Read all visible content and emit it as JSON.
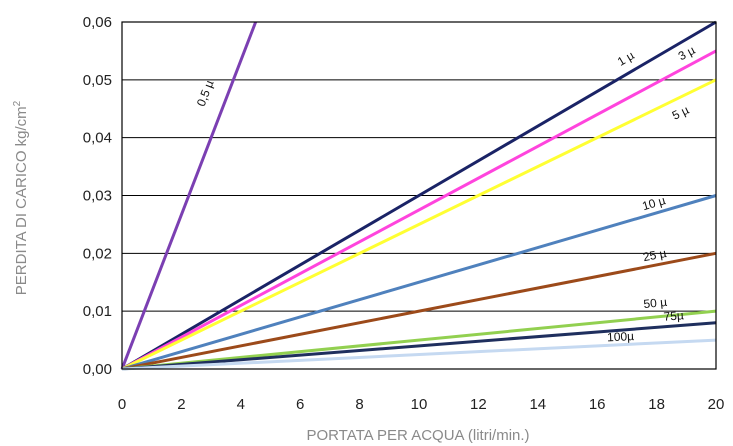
{
  "chart_data": {
    "type": "line",
    "xlabel": "PORTATA PER ACQUA (litri/min.)",
    "ylabel": "PERDITA DI CARICO kg/cm",
    "ylabel_superscript": "2",
    "xlim": [
      0,
      20
    ],
    "ylim": [
      0,
      0.06
    ],
    "x_ticks": [
      "0",
      "2",
      "4",
      "6",
      "8",
      "10",
      "12",
      "14",
      "16",
      "18",
      "20"
    ],
    "y_ticks": [
      "0,00",
      "0,01",
      "0,02",
      "0,03",
      "0,04",
      "0,05",
      "0,06"
    ],
    "grid": "horizontal",
    "series": [
      {
        "name": "0,5 µ",
        "color": "#7b3fb2",
        "x": [
          0,
          4.5
        ],
        "y": [
          0,
          0.06
        ]
      },
      {
        "name": "1 µ",
        "color": "#1a2366",
        "x": [
          0,
          20
        ],
        "y": [
          0,
          0.06
        ]
      },
      {
        "name": "3 µ",
        "color": "#ff44dd",
        "x": [
          0,
          20
        ],
        "y": [
          0,
          0.055
        ]
      },
      {
        "name": "5 µ",
        "color": "#ffff33",
        "x": [
          0,
          20
        ],
        "y": [
          0,
          0.05
        ]
      },
      {
        "name": "10 µ",
        "color": "#4f81bd",
        "x": [
          0,
          20
        ],
        "y": [
          0,
          0.03
        ]
      },
      {
        "name": "25 µ",
        "color": "#9c4a1a",
        "x": [
          0,
          20
        ],
        "y": [
          0,
          0.02
        ]
      },
      {
        "name": "50 µ",
        "color": "#92d050",
        "x": [
          0,
          20
        ],
        "y": [
          0,
          0.01
        ]
      },
      {
        "name": "75µ",
        "color": "#1f2f5e",
        "x": [
          0,
          20
        ],
        "y": [
          0,
          0.008
        ]
      },
      {
        "name": "100µ",
        "color": "#c5d9f1",
        "x": [
          0,
          20
        ],
        "y": [
          0,
          0.005
        ]
      }
    ]
  }
}
